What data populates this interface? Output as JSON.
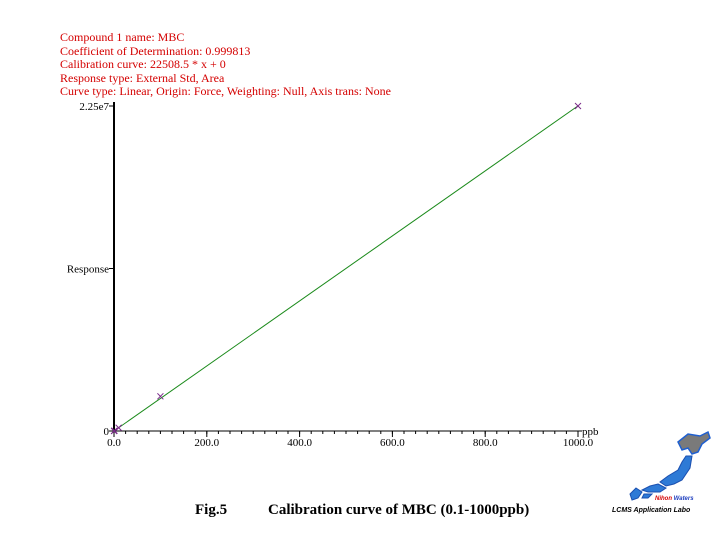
{
  "header": {
    "compound": "Compound 1 name: MBC",
    "coefficient": "Coefficient of Determination: 0.999813",
    "calibration": "Calibration curve: 22508.5 * x + 0",
    "response_type": "Response type: External Std, Area",
    "curve_type": "Curve type: Linear, Origin: Force, Weighting: Null, Axis trans: None"
  },
  "caption": {
    "fig": "Fig.5",
    "title": "Calibration curve of MBC (0.1-1000ppb)"
  },
  "logo": {
    "brand_nihon": "Nihon",
    "brand_waters": "Waters",
    "lab": "LCMS Application Labo"
  },
  "chart_data": {
    "type": "scatter",
    "title": "",
    "xlabel": "ppb",
    "ylabel": "Response",
    "xlim": [
      0,
      1000
    ],
    "ylim": [
      0,
      22500000
    ],
    "x_ticks": [
      "0.0",
      "200.0",
      "400.0",
      "600.0",
      "800.0",
      "1000.0"
    ],
    "y_ticks": [
      "0",
      "2.25e7"
    ],
    "points": [
      {
        "x": 0.1,
        "y": 2250
      },
      {
        "x": 1,
        "y": 22500
      },
      {
        "x": 10,
        "y": 225000
      },
      {
        "x": 100,
        "y": 2400000
      },
      {
        "x": 1000,
        "y": 22500000
      }
    ],
    "fit": {
      "slope": 22508.5,
      "intercept": 0
    },
    "colors": {
      "line": "#1a8a1a",
      "point": "#7a2a8a",
      "header": "#d40000"
    }
  }
}
